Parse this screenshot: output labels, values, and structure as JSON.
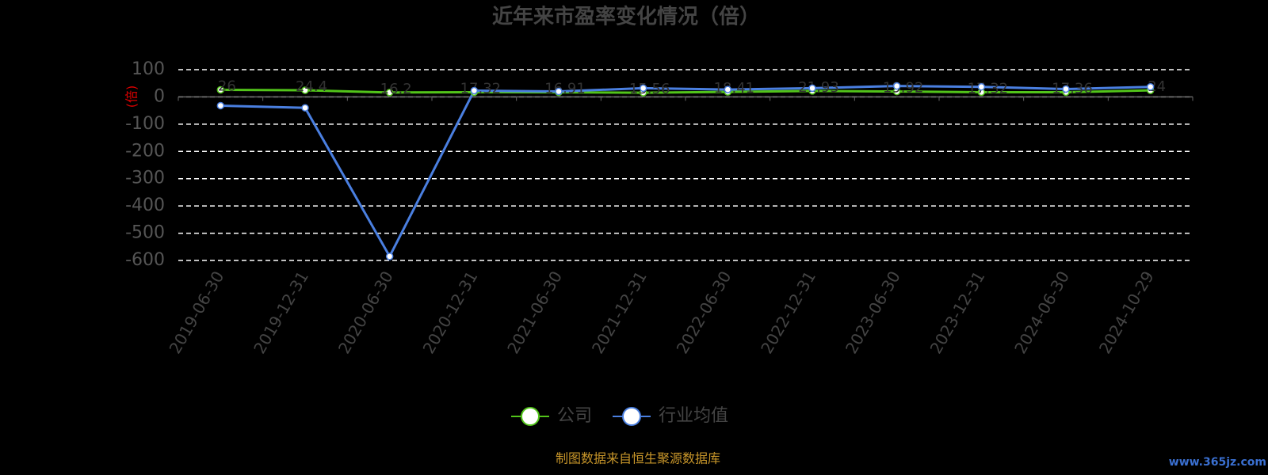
{
  "chart_data": {
    "type": "line",
    "title": "近年来市盈率变化情况（倍）",
    "y_label": "(倍)",
    "categories": [
      "2019-06-30",
      "2019-12-31",
      "2020-06-30",
      "2020-12-31",
      "2021-06-30",
      "2021-12-31",
      "2022-06-30",
      "2022-12-31",
      "2023-06-30",
      "2023-12-31",
      "2024-06-30",
      "2024-10-29"
    ],
    "series": [
      {
        "name": "公司",
        "color": "#52c41a",
        "values": [
          26,
          24.4,
          16.2,
          17.32,
          16.91,
          15.56,
          18.41,
          21.93,
          19.92,
          17.32,
          17.36,
          24
        ]
      },
      {
        "name": "行业均值",
        "color": "#4a7fe0",
        "values": [
          -32,
          -40,
          -585,
          23,
          20,
          32,
          27,
          32,
          40,
          37,
          29,
          37
        ]
      }
    ],
    "ylim": [
      -600,
      100
    ],
    "yticks": [
      100,
      0,
      -100,
      -200,
      -300,
      -400,
      -500,
      -600
    ],
    "grid": true,
    "source": "制图数据来自恒生聚源数据库",
    "watermark": "www.365jz.com"
  }
}
